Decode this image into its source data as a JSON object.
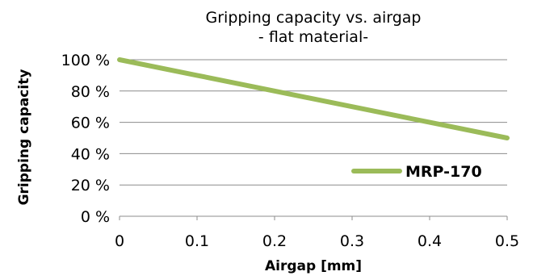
{
  "chart_data": {
    "type": "line",
    "title": "Gripping capacity vs. airgap",
    "subtitle": "- flat material-",
    "xlabel": "Airgap [mm]",
    "ylabel": "Gripping capacity",
    "xlim": [
      0,
      0.5
    ],
    "ylim": [
      0,
      100
    ],
    "x_ticks": [
      "0",
      "0.1",
      "0.2",
      "0.3",
      "0.4",
      "0.5"
    ],
    "y_ticks": [
      "0 %",
      "20 %",
      "40 %",
      "60 %",
      "80 %",
      "100 %"
    ],
    "grid": true,
    "legend_position": "right",
    "series": [
      {
        "name": "MRP-170",
        "color": "#9bbb59",
        "x": [
          0,
          0.1,
          0.2,
          0.3,
          0.4,
          0.5
        ],
        "y": [
          100,
          90,
          80,
          70,
          60,
          50
        ]
      }
    ]
  }
}
